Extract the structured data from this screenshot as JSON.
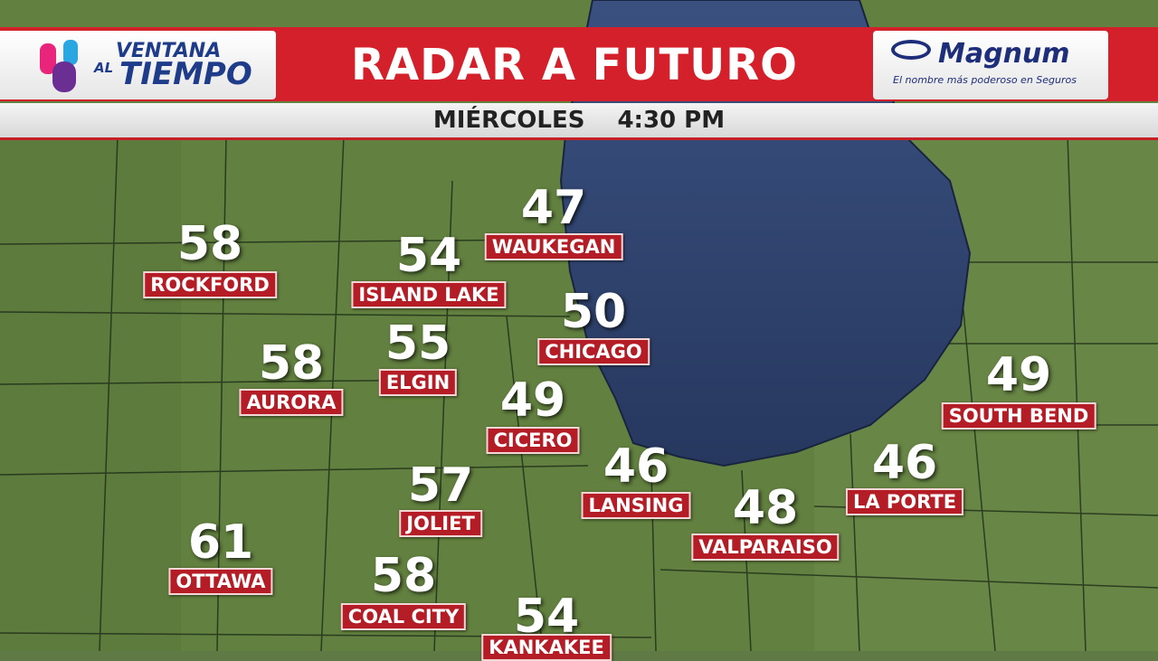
{
  "header": {
    "logo": {
      "line1": "VENTANA",
      "line2a": "AL",
      "line2b": "TIEMPO"
    },
    "title": "RADAR A FUTURO",
    "sponsor": {
      "name": "Magnum",
      "tagline": "El nombre más poderoso en Seguros"
    }
  },
  "subheader": {
    "day": "MIÉRCOLES",
    "time": "4:30 PM"
  },
  "cities": [
    {
      "temp": 58,
      "name": "ROCKFORD"
    },
    {
      "temp": 54,
      "name": "ISLAND LAKE"
    },
    {
      "temp": 47,
      "name": "WAUKEGAN"
    },
    {
      "temp": 50,
      "name": "CHICAGO"
    },
    {
      "temp": 58,
      "name": "AURORA"
    },
    {
      "temp": 55,
      "name": "ELGIN"
    },
    {
      "temp": 49,
      "name": "CICERO"
    },
    {
      "temp": 49,
      "name": "SOUTH BEND"
    },
    {
      "temp": 46,
      "name": "LANSING"
    },
    {
      "temp": 46,
      "name": "LA PORTE"
    },
    {
      "temp": 57,
      "name": "JOLIET"
    },
    {
      "temp": 48,
      "name": "VALPARAISO"
    },
    {
      "temp": 61,
      "name": "OTTAWA"
    },
    {
      "temp": 58,
      "name": "COAL CITY"
    },
    {
      "temp": 54,
      "name": "KANKAKEE"
    }
  ]
}
